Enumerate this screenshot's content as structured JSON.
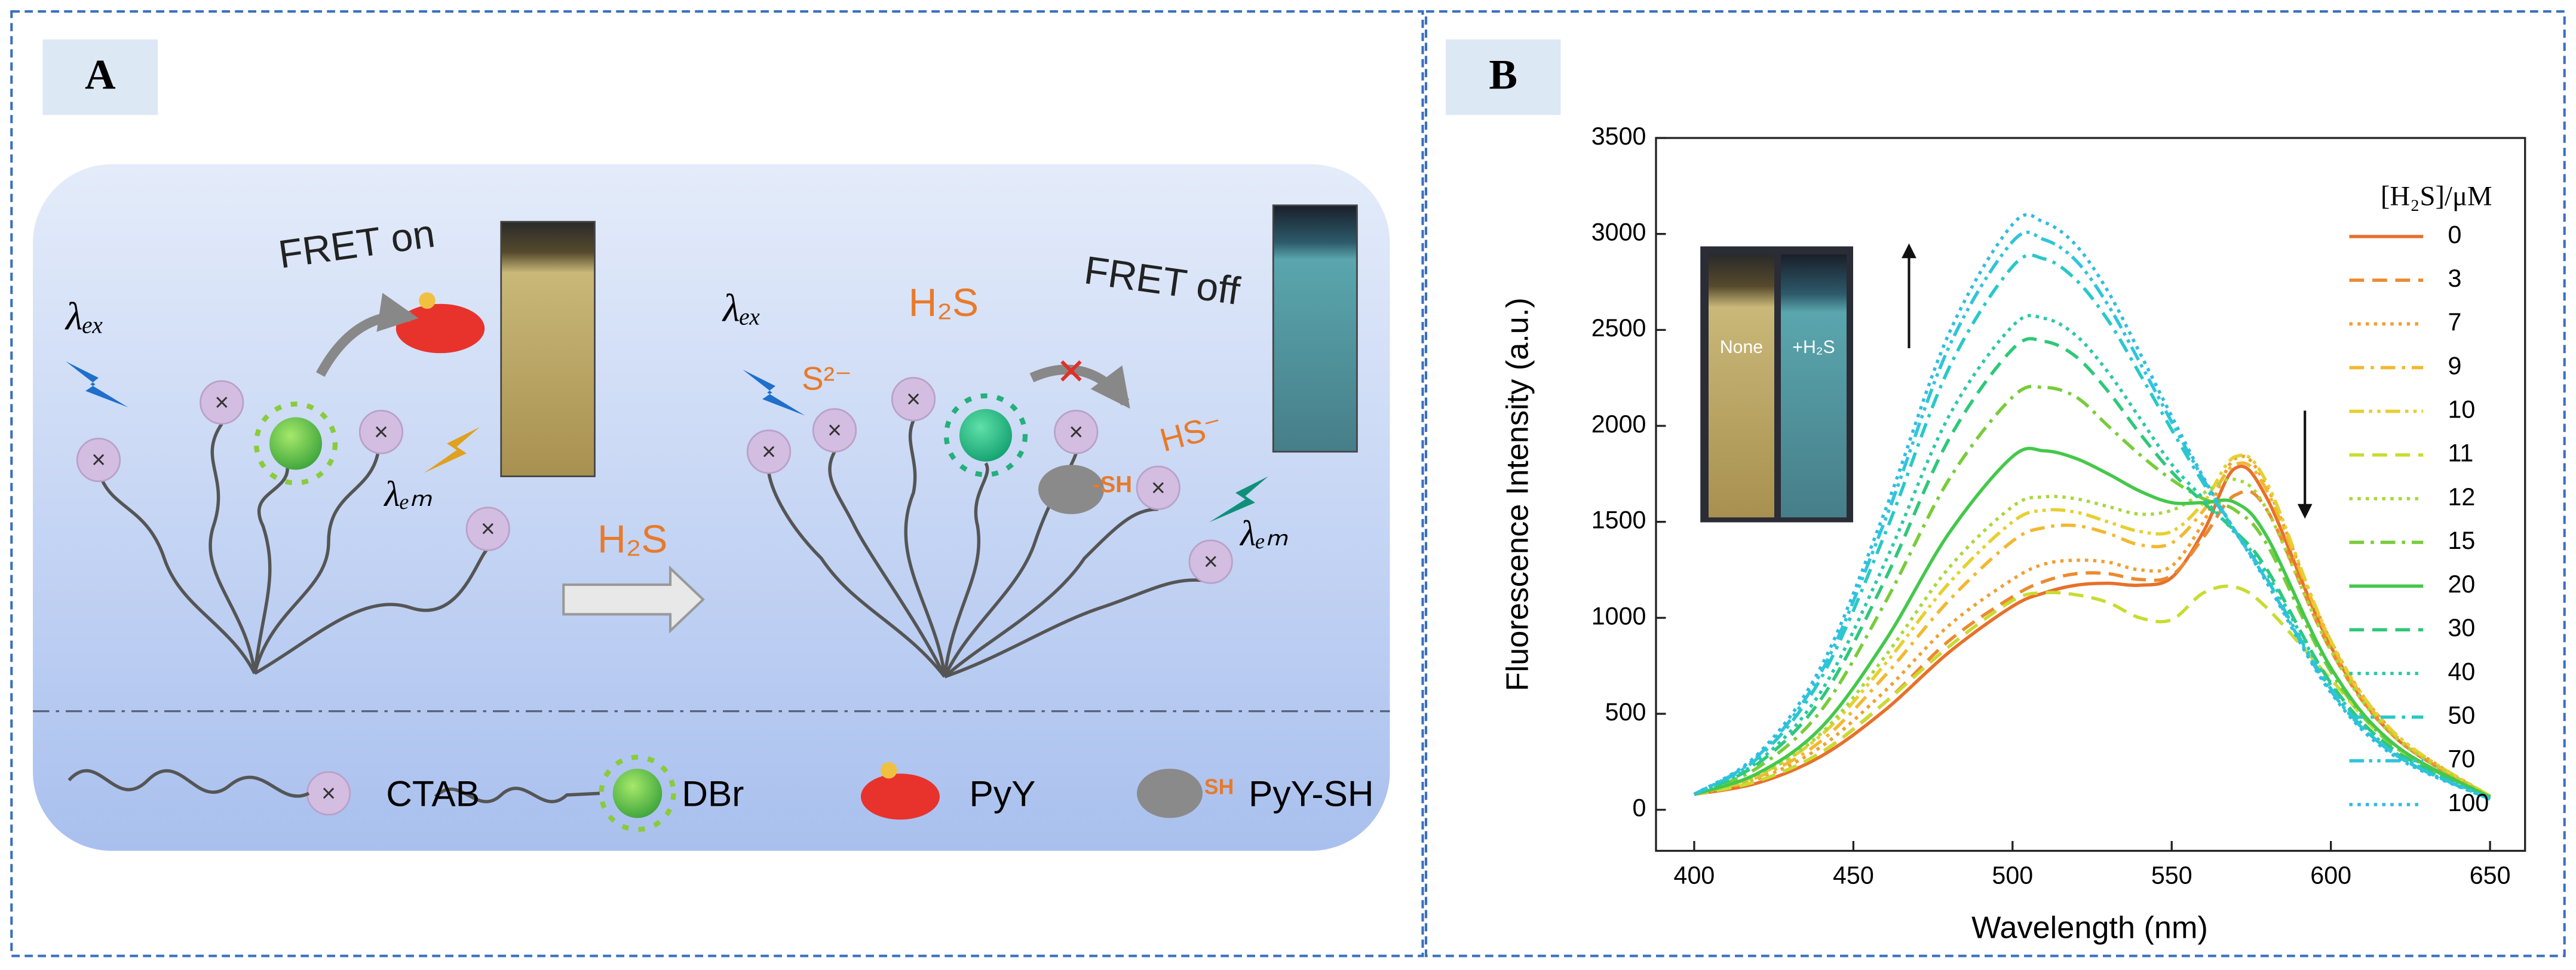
{
  "panel_a": {
    "label": "A",
    "lambda_ex_1": "λₑₓ",
    "fret_on": "FRET on",
    "lambda_em_1": "λₑₘ",
    "arrow_label": "H₂S",
    "lambda_ex_2": "λₑₓ",
    "sulfide": "S²⁻",
    "h2s": "H₂S",
    "fret_off": "FRET off",
    "hs": "HS⁻",
    "sh": "-SH",
    "lambda_em_2": "λₑₘ",
    "legend": {
      "ctab": "CTAB",
      "dbr": "DBr",
      "pyy": "PyY",
      "sh": "SH",
      "pyy_sh": "PyY-SH"
    }
  },
  "chart_data": {
    "type": "line",
    "panel_label": "B",
    "x_label": "Wavelength (nm)",
    "y_label": "Fluorescence Intensity (a.u.)",
    "legend_title": "[H₂S]/μM",
    "inset": {
      "left": "None",
      "right": "+H₂S"
    },
    "xlim": [
      388,
      661
    ],
    "xticks": [
      400,
      450,
      500,
      550,
      600,
      650
    ],
    "ylim": [
      -214,
      3500
    ],
    "yticks": [
      0,
      500,
      1000,
      1500,
      2000,
      2500,
      3000,
      3500
    ],
    "x": [
      400,
      420,
      440,
      460,
      480,
      500,
      510,
      520,
      530,
      540,
      550,
      560,
      570,
      580,
      600,
      620,
      650
    ],
    "series": [
      {
        "name": "0",
        "color": "#e8702a",
        "dash": "solid",
        "values": [
          80,
          140,
          280,
          520,
          820,
          1060,
          1130,
          1170,
          1180,
          1170,
          1210,
          1450,
          1780,
          1620,
          850,
          380,
          70
        ]
      },
      {
        "name": "3",
        "color": "#ec8a30",
        "dash": "dashed",
        "values": [
          80,
          150,
          300,
          560,
          880,
          1110,
          1190,
          1230,
          1230,
          1200,
          1220,
          1420,
          1640,
          1560,
          830,
          380,
          70
        ]
      },
      {
        "name": "7",
        "color": "#f0a030",
        "dash": "dotted",
        "values": [
          80,
          160,
          330,
          620,
          960,
          1200,
          1280,
          1300,
          1290,
          1250,
          1270,
          1500,
          1830,
          1680,
          880,
          400,
          70
        ]
      },
      {
        "name": "9",
        "color": "#f2b830",
        "dash": "dashdot",
        "values": [
          80,
          170,
          360,
          700,
          1090,
          1400,
          1470,
          1480,
          1440,
          1380,
          1390,
          1560,
          1800,
          1660,
          870,
          390,
          70
        ]
      },
      {
        "name": "10",
        "color": "#e6d030",
        "dash": "dashdotdot",
        "values": [
          80,
          180,
          390,
          760,
          1180,
          1500,
          1560,
          1550,
          1500,
          1450,
          1450,
          1600,
          1840,
          1700,
          880,
          400,
          70
        ]
      },
      {
        "name": "11",
        "color": "#c8dc30",
        "dash": "dashed",
        "values": [
          80,
          150,
          300,
          560,
          850,
          1090,
          1130,
          1120,
          1080,
          1000,
          990,
          1130,
          1160,
          1050,
          680,
          330,
          65
        ]
      },
      {
        "name": "12",
        "color": "#a8d83a",
        "dash": "dotted",
        "values": [
          80,
          180,
          400,
          800,
          1260,
          1580,
          1630,
          1620,
          1580,
          1540,
          1560,
          1650,
          1720,
          1560,
          830,
          380,
          70
        ]
      },
      {
        "name": "15",
        "color": "#78cc3a",
        "dash": "dashdot",
        "values": [
          80,
          220,
          520,
          1080,
          1720,
          2150,
          2200,
          2150,
          2000,
          1850,
          1720,
          1620,
          1560,
          1380,
          720,
          330,
          65
        ]
      },
      {
        "name": "20",
        "color": "#44c84a",
        "dash": "solid",
        "values": [
          80,
          190,
          430,
          880,
          1440,
          1840,
          1870,
          1830,
          1750,
          1660,
          1600,
          1600,
          1600,
          1420,
          740,
          340,
          65
        ]
      },
      {
        "name": "30",
        "color": "#2ec878",
        "dash": "dashed",
        "values": [
          80,
          240,
          580,
          1200,
          1930,
          2400,
          2440,
          2360,
          2180,
          1960,
          1760,
          1600,
          1450,
          1250,
          660,
          310,
          60
        ]
      },
      {
        "name": "40",
        "color": "#2ac8a8",
        "dash": "dotted",
        "values": [
          80,
          250,
          620,
          1290,
          2050,
          2520,
          2560,
          2470,
          2280,
          2040,
          1800,
          1620,
          1440,
          1230,
          650,
          300,
          60
        ]
      },
      {
        "name": "50",
        "color": "#28c8c8",
        "dash": "dashdot",
        "values": [
          80,
          270,
          690,
          1440,
          2300,
          2830,
          2870,
          2760,
          2550,
          2270,
          1980,
          1700,
          1450,
          1200,
          630,
          290,
          55
        ]
      },
      {
        "name": "70",
        "color": "#30c4dc",
        "dash": "dashdotdot",
        "values": [
          80,
          280,
          720,
          1510,
          2410,
          2960,
          2970,
          2860,
          2630,
          2330,
          2020,
          1720,
          1450,
          1190,
          620,
          290,
          55
        ]
      },
      {
        "name": "100",
        "color": "#30bce0",
        "dash": "dotted",
        "values": [
          80,
          290,
          750,
          1560,
          2480,
          3050,
          3060,
          2940,
          2700,
          2380,
          2050,
          1730,
          1450,
          1180,
          610,
          280,
          55
        ]
      }
    ]
  }
}
